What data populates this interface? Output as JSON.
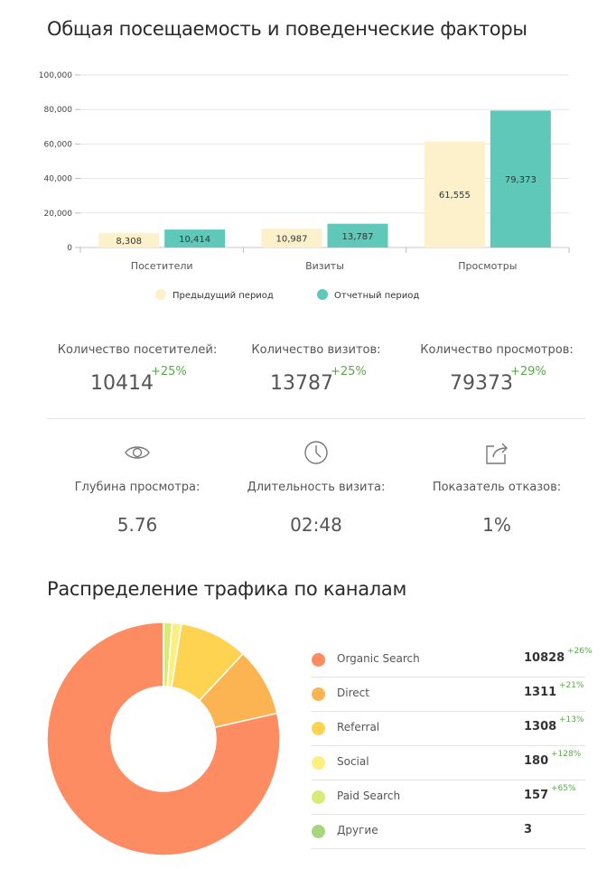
{
  "section1": {
    "title": "Общая посещаемость и поведенческие факторы"
  },
  "chart_data": {
    "type": "bar",
    "categories": [
      "Посетители",
      "Визиты",
      "Просмотры"
    ],
    "series": [
      {
        "name": "Предыдущий период",
        "values": [
          8308,
          10987,
          61555
        ],
        "labels": [
          "8,308",
          "10,987",
          "61,555"
        ],
        "color": "#fdf1cc"
      },
      {
        "name": "Отчетный период",
        "values": [
          10414,
          13787,
          79373
        ],
        "labels": [
          "10,414",
          "13,787",
          "79,373"
        ],
        "color": "#5fc8b8"
      }
    ],
    "ylim": [
      0,
      100000
    ],
    "yticks": [
      0,
      20000,
      40000,
      60000,
      80000,
      100000
    ],
    "ytick_labels": [
      "0",
      "20,000",
      "40,000",
      "60,000",
      "80,000",
      "100,000"
    ],
    "grid": true,
    "legend": "bottom"
  },
  "stats": [
    {
      "label": "Количество посетителей:",
      "value": "10414",
      "change": "+25%"
    },
    {
      "label": "Количество визитов:",
      "value": "13787",
      "change": "+25%"
    },
    {
      "label": "Количество просмотров:",
      "value": "79373",
      "change": "+29%"
    }
  ],
  "metrics": [
    {
      "icon": "eye-icon",
      "label": "Глубина просмотра:",
      "value": "5.76"
    },
    {
      "icon": "clock-icon",
      "label": "Длительность визита:",
      "value": "02:48"
    },
    {
      "icon": "share-icon",
      "label": "Показатель отказов:",
      "value": "1%"
    }
  ],
  "section2": {
    "title": "Распределение трафика по каналам"
  },
  "channels": [
    {
      "name": "Organic Search",
      "count": "10828",
      "change": "+26%",
      "value": 10828,
      "color": "#fd8c62"
    },
    {
      "name": "Direct",
      "count": "1311",
      "change": "+21%",
      "value": 1311,
      "color": "#fbb451"
    },
    {
      "name": "Referral",
      "count": "1308",
      "change": "+13%",
      "value": 1308,
      "color": "#fed352"
    },
    {
      "name": "Social",
      "count": "180",
      "change": "+128%",
      "value": 180,
      "color": "#fbef82"
    },
    {
      "name": "Paid Search",
      "count": "157",
      "change": "+65%",
      "value": 157,
      "color": "#d8eb79"
    },
    {
      "name": "Другие",
      "count": "3",
      "change": "",
      "value": 3,
      "color": "#a8d67e"
    }
  ]
}
